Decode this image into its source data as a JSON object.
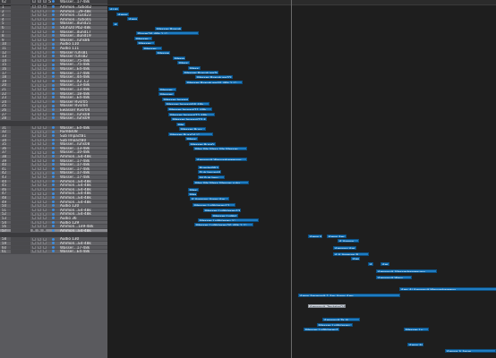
{
  "tracklist": {
    "header": [
      "I",
      "S"
    ],
    "buttons": [
      "M",
      "S",
      "R"
    ],
    "tracks": [
      {
        "num": "1",
        "name": "Ammon...tutio02"
      },
      {
        "num": "2",
        "name": "Ammon...29-48k"
      },
      {
        "num": "3",
        "name": "Ammon...tusd23"
      },
      {
        "num": "4",
        "name": "Ammon...tutio01"
      },
      {
        "num": "5",
        "name": "Wasser...dund21"
      },
      {
        "num": "6",
        "name": "Stuhl20 Pb2-48k"
      },
      {
        "num": "7",
        "name": "Wasser...dund17"
      },
      {
        "num": "8",
        "name": "Wasser...dund19"
      },
      {
        "num": "9",
        "name": "Wasser...ruhs86"
      },
      {
        "num": "10",
        "name": "Audio 110"
      },
      {
        "num": "11",
        "name": "Audio 111"
      },
      {
        "num": "12",
        "name": "Wasser ruhs81"
      },
      {
        "num": "13",
        "name": "Wasser ruhs82"
      },
      {
        "num": "14",
        "name": "Wasser...75-48k"
      },
      {
        "num": "15",
        "name": "Wasser...75-48k"
      },
      {
        "num": "16",
        "name": "Wasser...E4-48k"
      },
      {
        "num": "17",
        "name": "Wasser...17-48k"
      },
      {
        "num": "18",
        "name": "Wasser...44-48k"
      },
      {
        "num": "19",
        "name": "Wasser...X2..C2"
      },
      {
        "num": "20",
        "name": "Wasser...13-48k"
      },
      {
        "num": "21",
        "name": "Wasser...13-48k"
      },
      {
        "num": "22",
        "name": "Wasser...18-48k"
      },
      {
        "num": "23",
        "name": "Wasser...E4-48k"
      },
      {
        "num": "24",
        "name": "Wasser Rvsr05"
      },
      {
        "num": "25",
        "name": "Wasser Rvsr04"
      },
      {
        "num": "26",
        "name": "Ewasser Rvsr04"
      },
      {
        "num": "27",
        "name": "Wasser...ruhs08"
      },
      {
        "num": "28",
        "name": "Wasser...ruhs09"
      },
      {
        "num": "31",
        "name": "Wasser...E4-48k"
      },
      {
        "num": "32",
        "name": "Rumbs08"
      },
      {
        "num": "33",
        "name": "Sub Impact81"
      },
      {
        "num": "34",
        "name": "Sub Impact80"
      },
      {
        "num": "35",
        "name": "Wasser...ruhs08"
      },
      {
        "num": "36",
        "name": "Wasser...13-48k"
      },
      {
        "num": "37",
        "name": "Wasser...10-48k"
      },
      {
        "num": "38",
        "name": "Ammon...E4-48k"
      },
      {
        "num": "39",
        "name": "Wasser...17-48k"
      },
      {
        "num": "40",
        "name": "Wasser...17-48k"
      },
      {
        "num": "41",
        "name": "Wasser...17-48k"
      },
      {
        "num": "42",
        "name": "Wasser...17-48k"
      },
      {
        "num": "43",
        "name": "Wasser...17-48k"
      },
      {
        "num": "44",
        "name": "Ammon...E4-48k"
      },
      {
        "num": "45",
        "name": "Ammon...E4-48k"
      },
      {
        "num": "46",
        "name": "Ammon...E4-48k"
      },
      {
        "num": "47",
        "name": "Ammon...E4-48k"
      },
      {
        "num": "48",
        "name": "Ammon...E4-48k"
      },
      {
        "num": "49",
        "name": "Ammon...E4-48k"
      },
      {
        "num": "50",
        "name": "Audio 120"
      },
      {
        "num": "51",
        "name": "Ammon...E4-48k"
      },
      {
        "num": "52",
        "name": "Ammon...E4-48k"
      },
      {
        "num": "53",
        "name": "Audio 36"
      },
      {
        "num": "54",
        "name": "Audio 129"
      },
      {
        "num": "56",
        "name": "Ammon...1e9-48k"
      },
      {
        "num": "57",
        "name": "Ammon...E4-48k"
      },
      {
        "num": "58",
        "name": "Audio 130"
      },
      {
        "num": "59",
        "name": "Ammon...E4-48k"
      },
      {
        "num": "60",
        "name": "Wasser...17-48k"
      },
      {
        "num": "61",
        "name": "Wasser...E4-48k"
      },
      {
        "num": "62",
        "name": "Wasser...17-48k"
      }
    ]
  },
  "regions": [
    {
      "label": "Ai  Ai"
    },
    {
      "label": "Amm"
    },
    {
      "label": "Amm"
    },
    {
      "label": "Ai"
    },
    {
      "label": "Wasser Brandung21"
    },
    {
      "label": "Sturm20-48k.1  ⓒ"
    },
    {
      "label": "Wasser"
    },
    {
      "label": "Wasser"
    },
    {
      "label": "Wasser"
    },
    {
      "label": "Wasser"
    },
    {
      "label": "Wasser"
    },
    {
      "label": "Wass"
    },
    {
      "label": "Wass"
    },
    {
      "label": "Wasser Brandung34-48k"
    },
    {
      "label": "Wasser Brandung32  ⓒ"
    },
    {
      "label": "Wasser Brandung40-48k.1  ⓒ"
    },
    {
      "label": "Wasser"
    },
    {
      "label": "Wasser"
    },
    {
      "label": "Wasser Impact02 C"
    },
    {
      "label": "Wasser Impact08-48k"
    },
    {
      "label": "Wasser Impact71-48k"
    },
    {
      "label": "Wasser Impact72-48k"
    },
    {
      "label": "Wasser Impact73-48k  ⓒ"
    },
    {
      "label": "Wa"
    },
    {
      "label": "Wasser Rusr"
    },
    {
      "label": "Wasser Rusr04  ⓒ"
    },
    {
      "label": "Wass"
    },
    {
      "label": "Wasser Rusr0"
    },
    {
      "label": "Was  Wa  Wass  Wa  Wasser"
    },
    {
      "label": "Ammonit  Wasserbewegun"
    },
    {
      "label": "Rumbs0B  ⓒ"
    },
    {
      "label": "Sub Impact81  ⓒ"
    },
    {
      "label": "W  Sub Imp"
    },
    {
      "label": "Was  Wa  Wass  Wasser ruhs"
    },
    {
      "label": "Was"
    },
    {
      "label": "Was"
    },
    {
      "label": "A  Ammon  Amm  Am"
    },
    {
      "label": "Wasser Luftblasen12"
    },
    {
      "label": "Wasser Luftblasen13"
    },
    {
      "label": "Wasser Luftbl"
    },
    {
      "label": "Wasser Luftblasen  ⓒ"
    },
    {
      "label": "Wasser Luftblasen20-48k.1  ⓒ"
    },
    {
      "label": "Amm  Ai"
    },
    {
      "label": "Amm  Am"
    },
    {
      "label": "A  Ammo"
    },
    {
      "label": "Ammon  Am"
    },
    {
      "label": "A  A  Ammon  B"
    },
    {
      "label": "Amm"
    },
    {
      "label": "A"
    },
    {
      "label": "Am"
    },
    {
      "label": "Ammonit_Wasserbewegung"
    },
    {
      "label": "Ammonit  Wass"
    },
    {
      "label": "Amr  Ai  Ammonit  Wasserbewegu"
    },
    {
      "label": "Amm  Ammonit 1  Am  Amm  Amr"
    },
    {
      "label": "Ammonit_Tentakel24-48k"
    },
    {
      "label": "Ammonit  Ta  Ai"
    },
    {
      "label": "Wasser Luftblasen"
    },
    {
      "label": "Wasser Luftblasen12-"
    },
    {
      "label": "Wasser Lu"
    },
    {
      "label": "Amm  Ai"
    },
    {
      "label": "Amma  A  Amm"
    }
  ]
}
